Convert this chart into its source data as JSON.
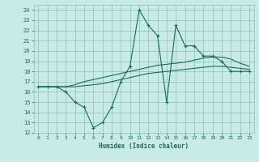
{
  "x_main": [
    0,
    1,
    2,
    3,
    4,
    5,
    6,
    7,
    8,
    9,
    10,
    11,
    12,
    13,
    14,
    15,
    16,
    17,
    18,
    19,
    20,
    21,
    22,
    23
  ],
  "y_main": [
    16.5,
    16.5,
    16.5,
    16.0,
    15.0,
    14.5,
    12.5,
    13.0,
    14.5,
    17.0,
    18.5,
    24.0,
    22.5,
    21.5,
    15.0,
    22.5,
    20.5,
    20.5,
    19.5,
    19.5,
    19.0,
    18.0,
    18.0,
    18.0
  ],
  "y_upper": [
    16.5,
    16.5,
    16.5,
    16.5,
    16.7,
    17.0,
    17.2,
    17.4,
    17.6,
    17.8,
    18.0,
    18.2,
    18.4,
    18.6,
    18.7,
    18.8,
    18.9,
    19.1,
    19.3,
    19.4,
    19.4,
    19.2,
    18.8,
    18.5
  ],
  "y_lower": [
    16.5,
    16.5,
    16.5,
    16.5,
    16.5,
    16.6,
    16.7,
    16.8,
    17.0,
    17.2,
    17.4,
    17.6,
    17.8,
    17.9,
    18.0,
    18.1,
    18.2,
    18.3,
    18.4,
    18.5,
    18.5,
    18.4,
    18.3,
    18.2
  ],
  "line_color": "#1a6b5a",
  "bg_color": "#c8ebe8",
  "grid_color": "#8bbfba",
  "xlabel": "Humidex (Indice chaleur)",
  "xlim": [
    -0.5,
    23.5
  ],
  "ylim": [
    12,
    24.5
  ],
  "yticks": [
    12,
    13,
    14,
    15,
    16,
    17,
    18,
    19,
    20,
    21,
    22,
    23,
    24
  ],
  "xticks": [
    0,
    1,
    2,
    3,
    4,
    5,
    6,
    7,
    8,
    9,
    10,
    11,
    12,
    13,
    14,
    15,
    16,
    17,
    18,
    19,
    20,
    21,
    22,
    23
  ]
}
